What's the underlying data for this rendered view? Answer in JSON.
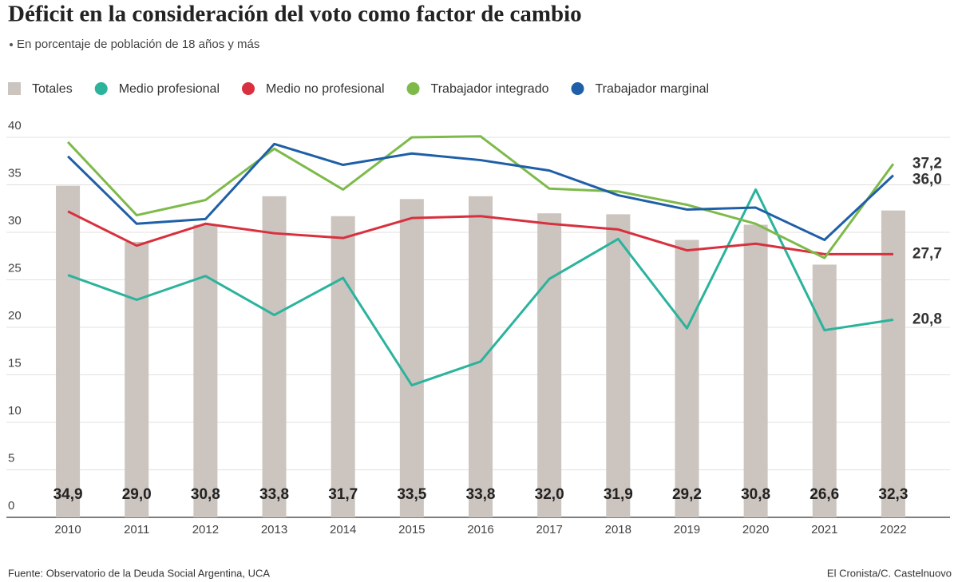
{
  "chart_data": {
    "type": "combo",
    "title": "Déficit en la consideración del voto como factor de cambio",
    "subtitle": "En porcentaje de población de 18 años y más",
    "source": "Fuente: Observatorio de la Deuda Social Argentina, UCA",
    "credit": "El Cronista/C. Castelnuovo",
    "categories": [
      "2010",
      "2011",
      "2012",
      "2013",
      "2014",
      "2015",
      "2016",
      "2017",
      "2018",
      "2019",
      "2020",
      "2021",
      "2022"
    ],
    "ylim": [
      0,
      40
    ],
    "yticks": [
      0,
      5,
      10,
      15,
      20,
      25,
      30,
      35,
      40
    ],
    "grid": true,
    "series": [
      {
        "name": "Totales",
        "type": "bar",
        "color": "#cbc4bf",
        "values": [
          34.9,
          29.0,
          30.8,
          33.8,
          31.7,
          33.5,
          33.8,
          32.0,
          31.9,
          29.2,
          30.8,
          26.6,
          32.3
        ],
        "value_labels": [
          "34,9",
          "29,0",
          "30,8",
          "33,8",
          "31,7",
          "33,5",
          "33,8",
          "32,0",
          "31,9",
          "29,2",
          "30,8",
          "26,6",
          "32,3"
        ]
      },
      {
        "name": "Medio profesional",
        "type": "line",
        "color": "#2bb39c",
        "values": [
          25.5,
          22.9,
          25.4,
          21.3,
          25.2,
          13.9,
          16.4,
          25.1,
          29.3,
          19.9,
          34.5,
          19.7,
          20.8
        ],
        "value_labels": [
          null,
          null,
          null,
          null,
          null,
          null,
          null,
          null,
          null,
          null,
          null,
          null,
          "20,8"
        ]
      },
      {
        "name": "Medio no profesional",
        "type": "line",
        "color": "#d8303e",
        "values": [
          32.2,
          28.6,
          30.9,
          29.9,
          29.4,
          31.5,
          31.7,
          30.9,
          30.3,
          28.1,
          28.8,
          27.7,
          27.7
        ],
        "value_labels": [
          null,
          null,
          null,
          null,
          null,
          null,
          null,
          null,
          null,
          null,
          null,
          null,
          "27,7"
        ]
      },
      {
        "name": "Trabajador integrado",
        "type": "line",
        "color": "#7dba4a",
        "values": [
          39.5,
          31.8,
          33.4,
          38.8,
          34.5,
          40.0,
          40.1,
          34.6,
          34.3,
          32.9,
          30.9,
          27.3,
          37.2
        ],
        "value_labels": [
          null,
          null,
          null,
          null,
          null,
          null,
          null,
          null,
          null,
          null,
          null,
          null,
          "37,2"
        ]
      },
      {
        "name": "Trabajador marginal",
        "type": "line",
        "color": "#1f5fa8",
        "values": [
          38.0,
          30.9,
          31.4,
          39.3,
          37.1,
          38.3,
          37.6,
          36.5,
          33.9,
          32.4,
          32.6,
          29.2,
          36.0
        ],
        "value_labels": [
          null,
          null,
          null,
          null,
          null,
          null,
          null,
          null,
          null,
          null,
          null,
          null,
          "36,0"
        ]
      }
    ]
  }
}
